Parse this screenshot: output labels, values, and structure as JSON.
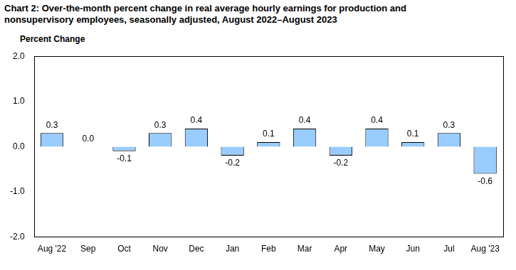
{
  "chart_data": {
    "type": "bar",
    "title": "Chart 2: Over-the-month percent change in real average hourly earnings for production and nonsupervisory employees, seasonally adjusted, August 2022–August 2023",
    "y_label": "Percent Change",
    "categories": [
      "Aug '22",
      "Sep",
      "Oct",
      "Nov",
      "Dec",
      "Jan",
      "Feb",
      "Mar",
      "Apr",
      "May",
      "Jun",
      "Jul",
      "Aug '23"
    ],
    "values": [
      0.3,
      0.0,
      -0.1,
      0.3,
      0.4,
      -0.2,
      0.1,
      0.4,
      -0.2,
      0.4,
      0.1,
      0.3,
      -0.6
    ],
    "value_labels": [
      "0.3",
      "0.0",
      "-0.1",
      "0.3",
      "0.4",
      "-0.2",
      "0.1",
      "0.4",
      "-0.2",
      "0.4",
      "0.1",
      "0.3",
      "-0.6"
    ],
    "color": "#99ccff",
    "ylim": [
      -2,
      2
    ],
    "yticks": [
      {
        "value": -2,
        "label": "-2.0"
      },
      {
        "value": -1,
        "label": "-1.0"
      },
      {
        "value": 0,
        "label": "0.0"
      },
      {
        "value": 1,
        "label": "1.0"
      },
      {
        "value": 2,
        "label": "2.0"
      }
    ],
    "grid": false,
    "data_labels": true
  }
}
